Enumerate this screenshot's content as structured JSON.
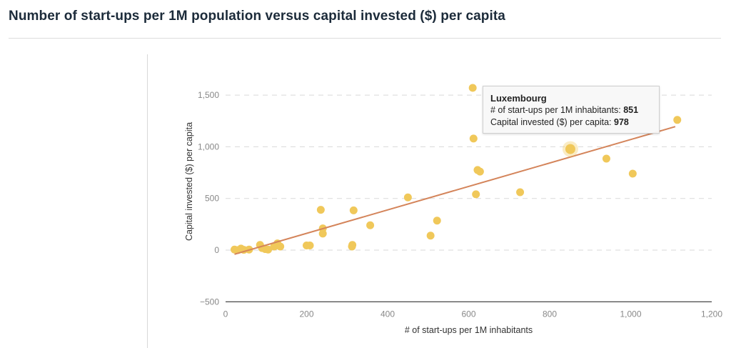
{
  "title": "Number of start-ups per 1M population versus capital invested ($) per capita",
  "tooltip": {
    "name": "Luxembourg",
    "x_label": "# of start-ups per 1M inhabitants:",
    "x_value": "851",
    "y_label": "Capital invested ($) per capita:",
    "y_value": "978"
  },
  "colors": {
    "points": "#f0c85a",
    "highlight": "#f0c85a",
    "trend": "#d4845a",
    "grid": "#d9d9d9",
    "axis": "#333333"
  },
  "chart_data": {
    "type": "scatter",
    "title": "Number of start-ups per 1M population versus capital invested ($) per capita",
    "xlabel": "# of start-ups per 1M inhabitants",
    "ylabel": "Capital invested ($) per capita",
    "xlim": [
      0,
      1200
    ],
    "ylim": [
      -500,
      1750
    ],
    "x_ticks": [
      0,
      200,
      400,
      600,
      800,
      1000,
      1200
    ],
    "x_tick_labels": [
      "0",
      "200",
      "400",
      "600",
      "800",
      "1,000",
      "1,200"
    ],
    "y_ticks": [
      -500,
      0,
      500,
      1000,
      1500
    ],
    "y_tick_labels": [
      "−500",
      "0",
      "500",
      "1,000",
      "1,500"
    ],
    "grid": "horizontal dashed",
    "points": [
      {
        "x": 22,
        "y": 5
      },
      {
        "x": 30,
        "y": 0
      },
      {
        "x": 38,
        "y": 15
      },
      {
        "x": 45,
        "y": 3
      },
      {
        "x": 58,
        "y": 5
      },
      {
        "x": 85,
        "y": 50
      },
      {
        "x": 90,
        "y": 20
      },
      {
        "x": 98,
        "y": 10
      },
      {
        "x": 105,
        "y": 5
      },
      {
        "x": 120,
        "y": 35
      },
      {
        "x": 125,
        "y": 45
      },
      {
        "x": 128,
        "y": 65
      },
      {
        "x": 135,
        "y": 35
      },
      {
        "x": 200,
        "y": 45
      },
      {
        "x": 208,
        "y": 45
      },
      {
        "x": 235,
        "y": 390
      },
      {
        "x": 240,
        "y": 210
      },
      {
        "x": 240,
        "y": 160
      },
      {
        "x": 312,
        "y": 35
      },
      {
        "x": 313,
        "y": 50
      },
      {
        "x": 316,
        "y": 385
      },
      {
        "x": 357,
        "y": 240
      },
      {
        "x": 450,
        "y": 510
      },
      {
        "x": 506,
        "y": 140
      },
      {
        "x": 522,
        "y": 285
      },
      {
        "x": 610,
        "y": 1570
      },
      {
        "x": 612,
        "y": 1080
      },
      {
        "x": 618,
        "y": 540
      },
      {
        "x": 622,
        "y": 775
      },
      {
        "x": 628,
        "y": 760
      },
      {
        "x": 727,
        "y": 560
      },
      {
        "x": 851,
        "y": 978
      },
      {
        "x": 940,
        "y": 885
      },
      {
        "x": 1005,
        "y": 740
      },
      {
        "x": 1115,
        "y": 1260
      }
    ],
    "highlighted_point": {
      "label": "Luxembourg",
      "x": 851,
      "y": 978
    },
    "trend_line": {
      "x": [
        22,
        1110
      ],
      "y": [
        -40,
        1195
      ]
    }
  }
}
